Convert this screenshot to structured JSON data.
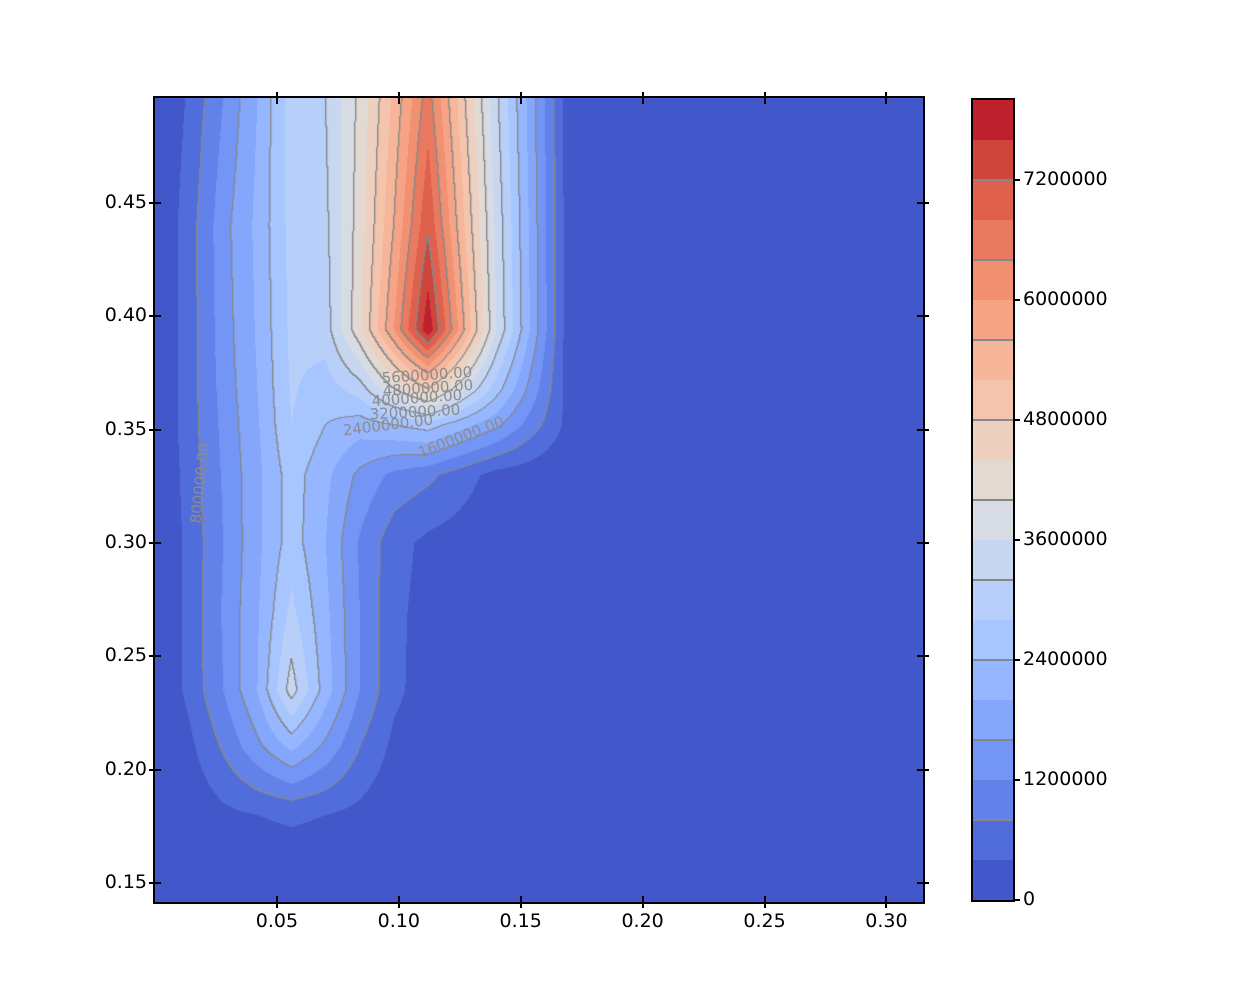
{
  "figure": {
    "background": "#ffffff"
  },
  "chart_data": {
    "type": "contour",
    "title": "",
    "xlabel": "",
    "ylabel": "",
    "x_range": [
      0.0,
      0.315
    ],
    "y_range": [
      0.1416,
      0.4963
    ],
    "x_ticks": [
      {
        "value": 0.05,
        "label": "0.05"
      },
      {
        "value": 0.1,
        "label": "0.10"
      },
      {
        "value": 0.15,
        "label": "0.15"
      },
      {
        "value": 0.2,
        "label": "0.20"
      },
      {
        "value": 0.25,
        "label": "0.25"
      },
      {
        "value": 0.3,
        "label": "0.30"
      }
    ],
    "y_ticks": [
      {
        "value": 0.15,
        "label": "0.15"
      },
      {
        "value": 0.2,
        "label": "0.20"
      },
      {
        "value": 0.25,
        "label": "0.25"
      },
      {
        "value": 0.3,
        "label": "0.30"
      },
      {
        "value": 0.35,
        "label": "0.35"
      },
      {
        "value": 0.4,
        "label": "0.40"
      },
      {
        "value": 0.45,
        "label": "0.45"
      }
    ],
    "fill_level_step": 400000,
    "line_level_step": 800000,
    "vmin": 0,
    "vmax": 8000000,
    "peak_value": 7900000,
    "peak_location": {
      "x": 0.112,
      "y": 0.394
    },
    "secondary_peak": {
      "value": 3400000,
      "x": 0.056,
      "y": 0.235
    },
    "palette": [
      "#4257C9",
      "#516DDB",
      "#6282EA",
      "#7395F5",
      "#84A7FC",
      "#96B7FF",
      "#A7C5FE",
      "#B8D0F9",
      "#C8D7F0",
      "#D6DBE4",
      "#E3D9D3",
      "#EED0C0",
      "#F5C4AD",
      "#F7B599",
      "#F6A485",
      "#F29072",
      "#E97A5F",
      "#DE604D",
      "#CF453C",
      "#BE212D"
    ],
    "line_color": "#85888a",
    "label_color": "#8c8c8c",
    "grid": {
      "x": [
        0.0,
        0.014,
        0.028,
        0.042,
        0.056,
        0.07,
        0.084,
        0.098,
        0.112,
        0.14,
        0.168,
        0.315
      ],
      "y": [
        0.1416,
        0.18,
        0.21,
        0.235,
        0.27,
        0.3,
        0.33,
        0.352,
        0.368,
        0.394,
        0.44,
        0.4963
      ],
      "z_millions": [
        [
          0,
          0.05,
          0.1,
          0.1,
          0.1,
          0.1,
          0.08,
          0.05,
          0.03,
          0,
          0,
          0
        ],
        [
          0,
          0.1,
          0.3,
          0.4,
          0.45,
          0.4,
          0.28,
          0.1,
          0.05,
          0,
          0,
          0
        ],
        [
          0,
          0.3,
          0.85,
          1.5,
          2.1,
          1.5,
          0.8,
          0.3,
          0.1,
          0.02,
          0,
          0
        ],
        [
          0,
          0.5,
          1.2,
          2.0,
          3.4,
          2.2,
          1.2,
          0.5,
          0.2,
          0.05,
          0,
          0
        ],
        [
          0,
          0.5,
          1.25,
          1.95,
          2.9,
          2.1,
          1.2,
          0.5,
          0.25,
          0.05,
          0,
          0
        ],
        [
          0,
          0.5,
          1.2,
          1.9,
          2.6,
          2.0,
          1.15,
          0.55,
          0.3,
          0.1,
          0,
          0
        ],
        [
          0,
          0.55,
          1.25,
          1.9,
          2.6,
          2.1,
          1.5,
          1.1,
          0.9,
          0.25,
          0.05,
          0
        ],
        [
          0,
          0.6,
          1.3,
          1.95,
          2.8,
          2.4,
          2.2,
          2.4,
          2.6,
          1.7,
          0.35,
          0
        ],
        [
          0,
          0.6,
          1.35,
          2.0,
          2.85,
          2.6,
          3.0,
          4.0,
          4.8,
          2.6,
          0.35,
          0
        ],
        [
          0,
          0.6,
          1.4,
          2.05,
          2.9,
          3.0,
          4.3,
          6.0,
          7.9,
          3.6,
          0.35,
          0
        ],
        [
          0,
          0.6,
          1.45,
          2.1,
          2.95,
          3.1,
          4.2,
          5.6,
          7.15,
          3.5,
          0.35,
          0
        ],
        [
          0,
          0.45,
          1.2,
          2.0,
          3.0,
          3.2,
          4.1,
          5.3,
          6.6,
          3.3,
          0.35,
          0
        ]
      ]
    },
    "contour_labels": [
      {
        "text": "5600000.00",
        "x": 0.1116,
        "y": 0.374,
        "rot": -4
      },
      {
        "text": "4800000.00",
        "x": 0.112,
        "y": 0.3683,
        "rot": -4
      },
      {
        "text": "4000000.00",
        "x": 0.1075,
        "y": 0.364,
        "rot": -4
      },
      {
        "text": "3200000.00",
        "x": 0.1066,
        "y": 0.3578,
        "rot": -3
      },
      {
        "text": "2400000.00",
        "x": 0.0956,
        "y": 0.352,
        "rot": -7
      },
      {
        "text": "1600000.00",
        "x": 0.1255,
        "y": 0.3468,
        "rot": -21
      },
      {
        "text": "800000.00",
        "x": 0.0185,
        "y": 0.3265,
        "rot": -84
      }
    ],
    "colorbar": {
      "ticks": [
        {
          "value": 0,
          "label": "0"
        },
        {
          "value": 1200000,
          "label": "1200000"
        },
        {
          "value": 2400000,
          "label": "2400000"
        },
        {
          "value": 3600000,
          "label": "3600000"
        },
        {
          "value": 4800000,
          "label": "4800000"
        },
        {
          "value": 6000000,
          "label": "6000000"
        },
        {
          "value": 7200000,
          "label": "7200000"
        }
      ],
      "line_levels": [
        800000,
        1600000,
        2400000,
        3200000,
        4000000,
        4800000,
        5600000,
        6400000,
        7200000
      ]
    }
  }
}
